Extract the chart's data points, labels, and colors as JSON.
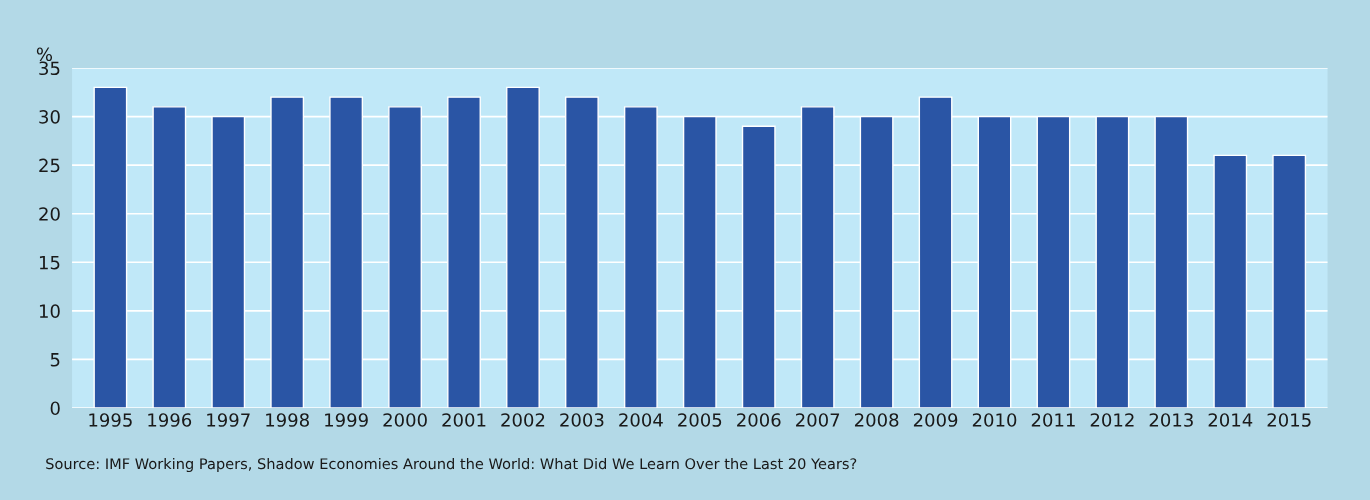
{
  "chart_data": {
    "type": "bar",
    "ylabel": "%",
    "categories": [
      "1995",
      "1996",
      "1997",
      "1998",
      "1999",
      "2000",
      "2001",
      "2002",
      "2003",
      "2004",
      "2005",
      "2006",
      "2007",
      "2008",
      "2009",
      "2010",
      "2011",
      "2012",
      "2013",
      "2014",
      "2015"
    ],
    "values": [
      33,
      31,
      30,
      32,
      32,
      31,
      32,
      33,
      32,
      31,
      30,
      29,
      31,
      30,
      32,
      30,
      30,
      30,
      30,
      26,
      26
    ],
    "color": "#2a55a5",
    "ylim": [
      0,
      35
    ],
    "yticks": [
      0,
      5,
      10,
      15,
      20,
      25,
      30,
      35
    ],
    "grid": "y",
    "annotations": [
      "Source: IMF Working Papers, Shadow Economies Around the World: What Did We Learn Over the Last 20 Years?"
    ]
  }
}
